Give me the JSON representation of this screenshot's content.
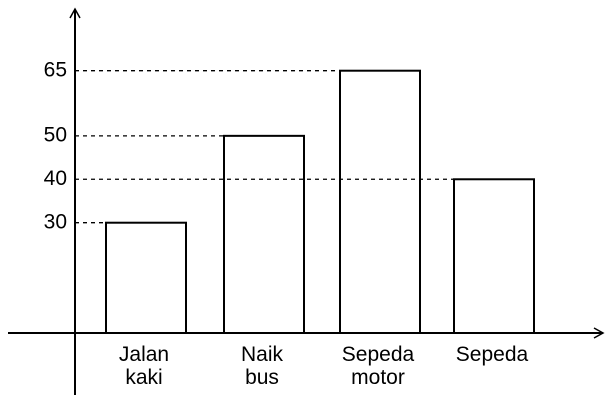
{
  "chart_data": {
    "type": "bar",
    "categories": [
      "Jalan\nkaki",
      "Naik\nbus",
      "Sepeda\nmotor",
      "Sepeda"
    ],
    "values": [
      30,
      50,
      65,
      40
    ],
    "color": "#ffffff",
    "ylim": [
      0,
      80
    ],
    "yticks": [
      30,
      40,
      50,
      65
    ],
    "grid": true
  }
}
